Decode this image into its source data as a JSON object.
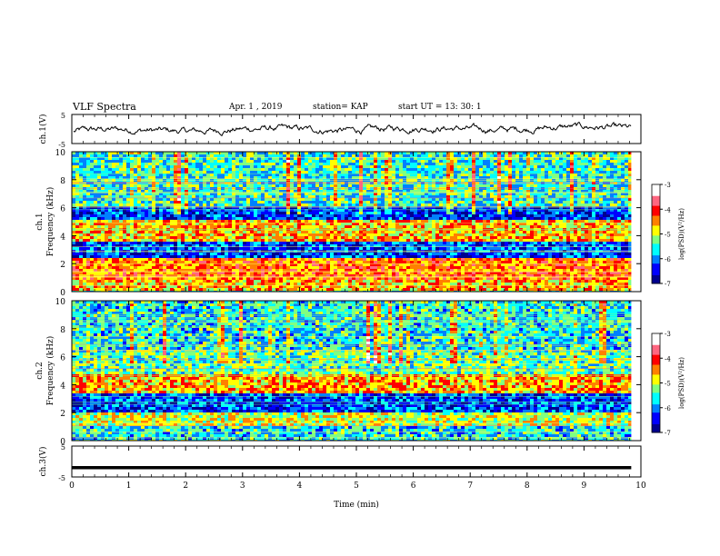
{
  "header": {
    "title": "VLF Spectra",
    "date": "Apr. 1 , 2019",
    "station": "station= KAP",
    "start": "start UT = 13: 30: 1"
  },
  "colors": {
    "waveform": "#000000",
    "colormap": [
      "#00008f",
      "#0000ff",
      "#0080ff",
      "#00ffff",
      "#80ff80",
      "#ffff00",
      "#ff8000",
      "#ff0000",
      "#ff6680",
      "#ffffff"
    ]
  },
  "chart_data": [
    {
      "type": "line",
      "name": "ch1-waveform",
      "ylabel": "ch.1(V)",
      "ylim": [
        -5,
        5
      ],
      "yticks": [
        "5",
        "-5"
      ],
      "xlim": [
        0,
        10
      ],
      "description_values": "noisy waveform centered near 0 V, amplitude about ±2 V"
    },
    {
      "type": "heatmap",
      "name": "ch1-spectrogram",
      "ylabel": "ch.1\nFrequency (kHz)",
      "ylim": [
        0,
        10
      ],
      "yticks": [
        "0",
        "2",
        "4",
        "6",
        "8",
        "10"
      ],
      "xlim": [
        0,
        10
      ],
      "colorbar": {
        "label": "log(PSD)(V²/Hz)",
        "range": [
          -7,
          -3
        ],
        "ticks": [
          "-3",
          "-4",
          "-5",
          "-6",
          "-7"
        ]
      },
      "bands": [
        {
          "f": [
            0,
            0.8
          ],
          "level": -4.6
        },
        {
          "f": [
            0.8,
            2.4
          ],
          "level": -4.3
        },
        {
          "f": [
            2.4,
            3.6
          ],
          "level": -6.2
        },
        {
          "f": [
            3.6,
            5.2
          ],
          "level": -4.6
        },
        {
          "f": [
            5.2,
            6.2
          ],
          "level": -6.3
        },
        {
          "f": [
            6.2,
            10
          ],
          "level": -5.5
        }
      ]
    },
    {
      "type": "heatmap",
      "name": "ch2-spectrogram",
      "ylabel": "ch.2\nFrequency (kHz)",
      "ylim": [
        0,
        10
      ],
      "yticks": [
        "0",
        "2",
        "4",
        "6",
        "8",
        "10"
      ],
      "xlim": [
        0,
        10
      ],
      "colorbar": {
        "label": "log(PSD)(V²/Hz)",
        "range": [
          -7,
          -3
        ],
        "ticks": [
          "-3",
          "-4",
          "-5",
          "-6",
          "-7"
        ]
      },
      "bands": [
        {
          "f": [
            0,
            1.0
          ],
          "level": -5.6
        },
        {
          "f": [
            1.0,
            2.0
          ],
          "level": -4.9
        },
        {
          "f": [
            2.0,
            3.4
          ],
          "level": -6.2
        },
        {
          "f": [
            3.4,
            4.8
          ],
          "level": -4.5
        },
        {
          "f": [
            4.8,
            6.4
          ],
          "level": -5.3
        },
        {
          "f": [
            6.4,
            10
          ],
          "level": -5.6
        }
      ]
    },
    {
      "type": "line",
      "name": "ch3-waveform",
      "ylabel": "ch.3(V)",
      "ylim": [
        -5,
        5
      ],
      "yticks": [
        "5",
        "-5"
      ],
      "xlim": [
        0,
        10
      ],
      "xlabel": "Time (min)",
      "xticks": [
        "0",
        "1",
        "2",
        "3",
        "4",
        "5",
        "6",
        "7",
        "8",
        "9",
        "10"
      ],
      "constant_value": -2
    }
  ]
}
